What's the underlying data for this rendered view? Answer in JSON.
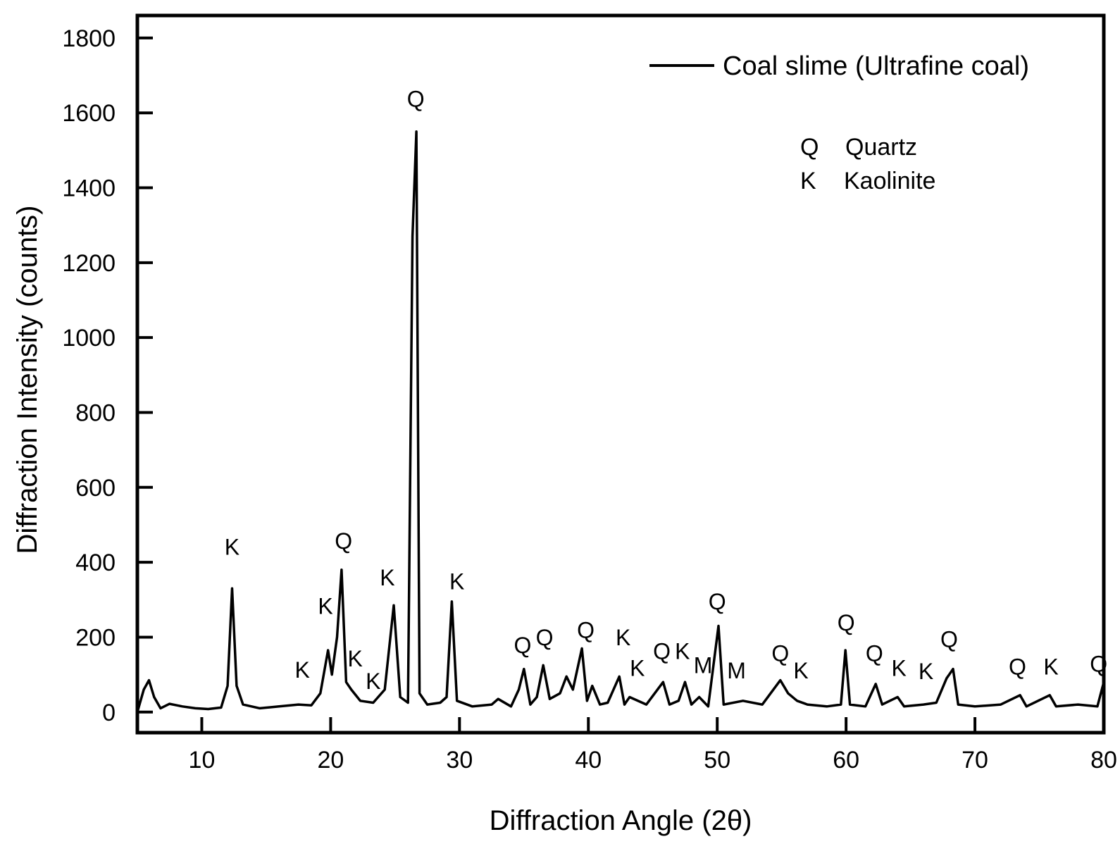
{
  "chart_data": {
    "type": "line",
    "xlabel": "Diffraction Angle (2θ)",
    "ylabel": "Diffraction Intensity (counts)",
    "xlim": [
      5,
      80
    ],
    "ylim": [
      -55,
      1860
    ],
    "x_ticks": [
      10,
      20,
      30,
      40,
      50,
      60,
      70,
      80
    ],
    "y_ticks": [
      0,
      200,
      400,
      600,
      800,
      1000,
      1200,
      1400,
      1600,
      1800
    ],
    "grid": false,
    "legend_position": "top-right",
    "series": [
      {
        "name": "Coal slime (Ultrafine coal)",
        "color": "#000000",
        "points": [
          [
            5.0,
            0
          ],
          [
            5.5,
            60
          ],
          [
            5.9,
            85
          ],
          [
            6.3,
            40
          ],
          [
            6.8,
            10
          ],
          [
            7.5,
            22
          ],
          [
            8.5,
            15
          ],
          [
            9.5,
            10
          ],
          [
            10.5,
            8
          ],
          [
            11.5,
            12
          ],
          [
            12.0,
            70
          ],
          [
            12.35,
            330
          ],
          [
            12.7,
            70
          ],
          [
            13.2,
            20
          ],
          [
            14.5,
            10
          ],
          [
            16.0,
            15
          ],
          [
            17.5,
            20
          ],
          [
            18.5,
            18
          ],
          [
            19.2,
            50
          ],
          [
            19.8,
            165
          ],
          [
            20.1,
            100
          ],
          [
            20.5,
            200
          ],
          [
            20.85,
            380
          ],
          [
            21.2,
            80
          ],
          [
            21.6,
            60
          ],
          [
            22.3,
            30
          ],
          [
            23.3,
            25
          ],
          [
            24.2,
            60
          ],
          [
            24.9,
            285
          ],
          [
            25.4,
            40
          ],
          [
            26.0,
            25
          ],
          [
            26.35,
            1270
          ],
          [
            26.65,
            1550
          ],
          [
            26.9,
            50
          ],
          [
            27.5,
            20
          ],
          [
            28.5,
            25
          ],
          [
            29.0,
            40
          ],
          [
            29.4,
            295
          ],
          [
            29.8,
            30
          ],
          [
            31.0,
            15
          ],
          [
            32.5,
            20
          ],
          [
            33.0,
            35
          ],
          [
            34.0,
            15
          ],
          [
            34.6,
            60
          ],
          [
            35.0,
            115
          ],
          [
            35.5,
            20
          ],
          [
            36.0,
            40
          ],
          [
            36.5,
            125
          ],
          [
            37.0,
            35
          ],
          [
            37.8,
            50
          ],
          [
            38.3,
            95
          ],
          [
            38.8,
            60
          ],
          [
            39.5,
            170
          ],
          [
            39.9,
            30
          ],
          [
            40.3,
            70
          ],
          [
            40.9,
            20
          ],
          [
            41.5,
            25
          ],
          [
            42.4,
            95
          ],
          [
            42.8,
            20
          ],
          [
            43.2,
            40
          ],
          [
            44.5,
            20
          ],
          [
            45.8,
            80
          ],
          [
            46.3,
            20
          ],
          [
            47.0,
            30
          ],
          [
            47.5,
            80
          ],
          [
            48.0,
            20
          ],
          [
            48.6,
            40
          ],
          [
            49.3,
            15
          ],
          [
            50.1,
            230
          ],
          [
            50.5,
            20
          ],
          [
            52.0,
            30
          ],
          [
            53.5,
            20
          ],
          [
            54.9,
            85
          ],
          [
            55.5,
            50
          ],
          [
            56.2,
            30
          ],
          [
            57.0,
            20
          ],
          [
            58.5,
            15
          ],
          [
            59.6,
            20
          ],
          [
            59.95,
            165
          ],
          [
            60.3,
            20
          ],
          [
            61.5,
            15
          ],
          [
            62.3,
            75
          ],
          [
            62.8,
            20
          ],
          [
            64.0,
            40
          ],
          [
            64.5,
            15
          ],
          [
            66.0,
            20
          ],
          [
            67.0,
            25
          ],
          [
            67.8,
            90
          ],
          [
            68.0,
            100
          ],
          [
            68.3,
            115
          ],
          [
            68.7,
            20
          ],
          [
            70.0,
            15
          ],
          [
            72.0,
            20
          ],
          [
            73.5,
            45
          ],
          [
            74.0,
            15
          ],
          [
            75.8,
            45
          ],
          [
            76.3,
            15
          ],
          [
            78.0,
            20
          ],
          [
            79.5,
            15
          ],
          [
            80.0,
            80
          ]
        ]
      }
    ],
    "peak_labels": [
      {
        "text": "K",
        "x": 12.35,
        "y": 420
      },
      {
        "text": "K",
        "x": 17.8,
        "y": 92
      },
      {
        "text": "K",
        "x": 19.6,
        "y": 262
      },
      {
        "text": "Q",
        "x": 21.0,
        "y": 436
      },
      {
        "text": "K",
        "x": 21.9,
        "y": 122
      },
      {
        "text": "K",
        "x": 23.3,
        "y": 62
      },
      {
        "text": "K",
        "x": 24.4,
        "y": 338
      },
      {
        "text": "Q",
        "x": 26.6,
        "y": 1616
      },
      {
        "text": "K",
        "x": 29.8,
        "y": 328
      },
      {
        "text": "Q",
        "x": 34.9,
        "y": 158
      },
      {
        "text": "Q",
        "x": 36.6,
        "y": 178
      },
      {
        "text": "Q",
        "x": 39.8,
        "y": 198
      },
      {
        "text": "K",
        "x": 42.7,
        "y": 178
      },
      {
        "text": "K",
        "x": 43.8,
        "y": 96
      },
      {
        "text": "Q",
        "x": 45.7,
        "y": 142
      },
      {
        "text": "K",
        "x": 47.3,
        "y": 142
      },
      {
        "text": "M",
        "x": 48.9,
        "y": 104
      },
      {
        "text": "M",
        "x": 51.5,
        "y": 90
      },
      {
        "text": "Q",
        "x": 50.0,
        "y": 274
      },
      {
        "text": "Q",
        "x": 54.9,
        "y": 136
      },
      {
        "text": "K",
        "x": 56.5,
        "y": 90
      },
      {
        "text": "Q",
        "x": 60.0,
        "y": 218
      },
      {
        "text": "Q",
        "x": 62.2,
        "y": 136
      },
      {
        "text": "K",
        "x": 64.1,
        "y": 96
      },
      {
        "text": "K",
        "x": 66.2,
        "y": 88
      },
      {
        "text": "Q",
        "x": 68.0,
        "y": 174
      },
      {
        "text": "Q",
        "x": 73.3,
        "y": 100
      },
      {
        "text": "K",
        "x": 75.9,
        "y": 100
      },
      {
        "text": "Q",
        "x": 79.6,
        "y": 108
      }
    ],
    "phase_key": [
      {
        "symbol": "Q",
        "name": "Quartz"
      },
      {
        "symbol": "K",
        "name": "Kaolinite"
      }
    ]
  }
}
